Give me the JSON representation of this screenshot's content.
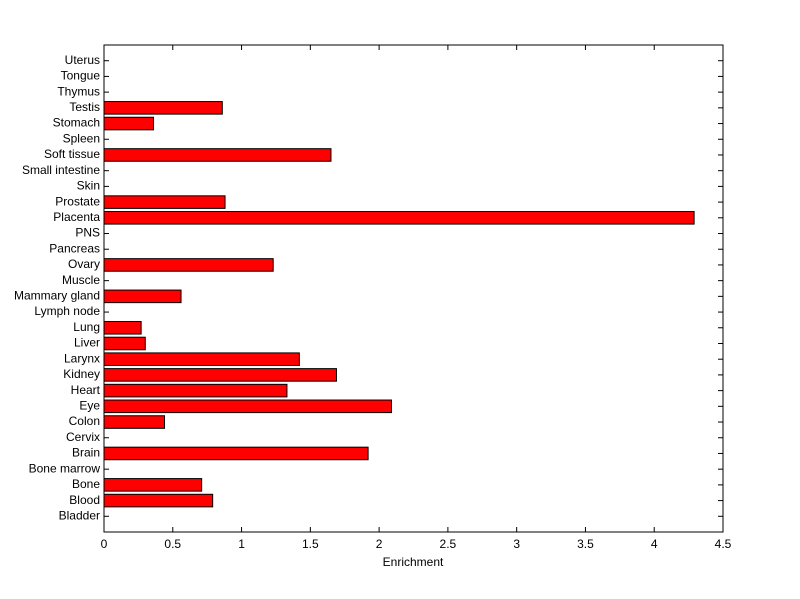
{
  "chart_data": {
    "type": "barh",
    "xlabel": "Enrichment",
    "categories": [
      "Bladder",
      "Blood",
      "Bone",
      "Bone marrow",
      "Brain",
      "Cervix",
      "Colon",
      "Eye",
      "Heart",
      "Kidney",
      "Larynx",
      "Liver",
      "Lung",
      "Lymph node",
      "Mammary gland",
      "Muscle",
      "Ovary",
      "Pancreas",
      "PNS",
      "Placenta",
      "Prostate",
      "Skin",
      "Small intestine",
      "Soft tissue",
      "Spleen",
      "Stomach",
      "Testis",
      "Thymus",
      "Tongue",
      "Uterus"
    ],
    "values": [
      0,
      0.79,
      0.71,
      0,
      1.92,
      0,
      0.44,
      2.09,
      1.33,
      1.69,
      1.42,
      0.3,
      0.27,
      0,
      0.56,
      0,
      1.23,
      0,
      0,
      4.29,
      0.88,
      0,
      0,
      1.65,
      0,
      0.36,
      0.86,
      0,
      0,
      0
    ],
    "color": "#ff0000",
    "xlim": [
      0,
      4.5
    ],
    "xticks": [
      0,
      0.5,
      1,
      1.5,
      2,
      2.5,
      3,
      3.5,
      4,
      4.5
    ]
  }
}
